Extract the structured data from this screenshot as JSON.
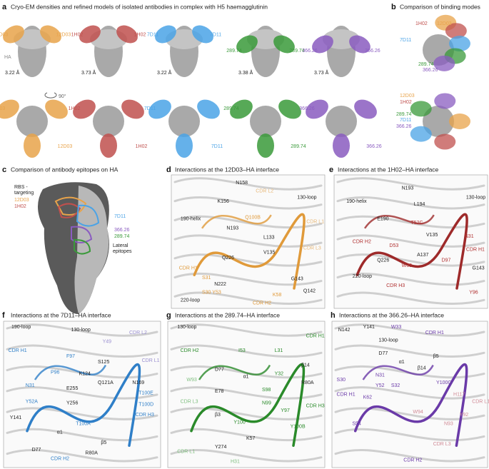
{
  "panels": {
    "a": {
      "letter": "a",
      "title": "Cryo-EM densities and refined models of isolated antibodies in complex with H5 haemagglutinin",
      "ha": "HA",
      "rotation": "90°",
      "structures": [
        {
          "name": "12D03",
          "color": "#e8a34a",
          "resolution": "3.22 Å"
        },
        {
          "name": "1H02",
          "color": "#c0504d",
          "resolution": "3.73 Å"
        },
        {
          "name": "7D11",
          "color": "#4aa3e6",
          "resolution": "3.22 Å"
        },
        {
          "name": "289.74",
          "color": "#3a9a3a",
          "resolution": "3.38 Å"
        },
        {
          "name": "366.26",
          "color": "#8a5cc0",
          "resolution": "3.73 Å"
        }
      ]
    },
    "b": {
      "letter": "b",
      "title": "Comparison of binding modes"
    },
    "c": {
      "letter": "c",
      "title": "Comparison of antibody epitopes on HA",
      "rbs": "RBS -",
      "rbs2": "targeting",
      "lateral": "Lateral",
      "lateral2": "epitopes"
    },
    "d": {
      "letter": "d",
      "title": "Interactions at the 12D03–HA interface",
      "color": "#e09a3a",
      "labels": [
        {
          "text": "N158",
          "color": "#222"
        },
        {
          "text": "K156",
          "color": "#222"
        },
        {
          "text": "130-loop",
          "color": "#222"
        },
        {
          "text": "190-helix",
          "color": "#222"
        },
        {
          "text": "N193",
          "color": "#222"
        },
        {
          "text": "L133",
          "color": "#222"
        },
        {
          "text": "V135",
          "color": "#222"
        },
        {
          "text": "Q226",
          "color": "#222"
        },
        {
          "text": "CDR L2",
          "color": "#e8b878"
        },
        {
          "text": "CDR L1",
          "color": "#e8b878"
        },
        {
          "text": "CDR L3",
          "color": "#e8b878"
        },
        {
          "text": "CDR H1",
          "color": "#e09a3a"
        },
        {
          "text": "S31",
          "color": "#e09a3a"
        },
        {
          "text": "S30 Y53",
          "color": "#e09a3a"
        },
        {
          "text": "N222",
          "color": "#222"
        },
        {
          "text": "220-loop",
          "color": "#222"
        },
        {
          "text": "G143",
          "color": "#222"
        },
        {
          "text": "Q142",
          "color": "#222"
        },
        {
          "text": "K58",
          "color": "#e09a3a"
        },
        {
          "text": "CDR H2",
          "color": "#e09a3a"
        },
        {
          "text": "Q100B",
          "color": "#e09a3a"
        }
      ]
    },
    "e": {
      "letter": "e",
      "title": "Interactions at the 1H02–HA interface",
      "color": "#9e2a2a",
      "labels": [
        {
          "text": "190-helix",
          "color": "#222"
        },
        {
          "text": "N193",
          "color": "#222"
        },
        {
          "text": "L194",
          "color": "#222"
        },
        {
          "text": "E190",
          "color": "#222"
        },
        {
          "text": "130-loop",
          "color": "#222"
        },
        {
          "text": "T52C",
          "color": "#b03030"
        },
        {
          "text": "V135",
          "color": "#222"
        },
        {
          "text": "N31",
          "color": "#b03030"
        },
        {
          "text": "CDR H1",
          "color": "#b03030"
        },
        {
          "text": "CDR H2",
          "color": "#b03030"
        },
        {
          "text": "D53",
          "color": "#b03030"
        },
        {
          "text": "Q226",
          "color": "#222"
        },
        {
          "text": "A137",
          "color": "#222"
        },
        {
          "text": "W33",
          "color": "#b03030"
        },
        {
          "text": "G143",
          "color": "#222"
        },
        {
          "text": "D97",
          "color": "#b03030"
        },
        {
          "text": "CDR H3",
          "color": "#b03030"
        },
        {
          "text": "Y96",
          "color": "#b03030"
        },
        {
          "text": "220-loop",
          "color": "#222"
        }
      ]
    },
    "f": {
      "letter": "f",
      "title": "Interactions at the 7D11–HA interface",
      "color": "#2f7fc8",
      "labels": [
        {
          "text": "190-loop",
          "color": "#222"
        },
        {
          "text": "130-loop",
          "color": "#222"
        },
        {
          "text": "CDR L2",
          "color": "#9a8fd0"
        },
        {
          "text": "Y49",
          "color": "#9a8fd0"
        },
        {
          "text": "CDR L1",
          "color": "#9a8fd0"
        },
        {
          "text": "CDR H1",
          "color": "#2f7fc8"
        },
        {
          "text": "F97",
          "color": "#2f7fc8"
        },
        {
          "text": "S125",
          "color": "#222"
        },
        {
          "text": "P96",
          "color": "#2f7fc8"
        },
        {
          "text": "K124",
          "color": "#222"
        },
        {
          "text": "N169",
          "color": "#222"
        },
        {
          "text": "N31",
          "color": "#2f7fc8"
        },
        {
          "text": "Q121A",
          "color": "#222"
        },
        {
          "text": "E255",
          "color": "#222"
        },
        {
          "text": "T100E",
          "color": "#2f7fc8"
        },
        {
          "text": "Y52A",
          "color": "#2f7fc8"
        },
        {
          "text": "Y256",
          "color": "#222"
        },
        {
          "text": "T100D",
          "color": "#2f7fc8"
        },
        {
          "text": "CDR H3",
          "color": "#2f7fc8"
        },
        {
          "text": "Y141",
          "color": "#222"
        },
        {
          "text": "T100A",
          "color": "#2f7fc8"
        },
        {
          "text": "α1",
          "color": "#222"
        },
        {
          "text": "β5",
          "color": "#222"
        },
        {
          "text": "D77",
          "color": "#222"
        },
        {
          "text": "R80A",
          "color": "#222"
        },
        {
          "text": "CDR H2",
          "color": "#2f7fc8"
        }
      ]
    },
    "g": {
      "letter": "g",
      "title": "Interactions at the 289.74–HA interface",
      "color": "#2a8a2a",
      "labels": [
        {
          "text": "130-loop",
          "color": "#222"
        },
        {
          "text": "CDR H1",
          "color": "#2a8a2a"
        },
        {
          "text": "CDR H2",
          "color": "#2a8a2a"
        },
        {
          "text": "I53",
          "color": "#2a8a2a"
        },
        {
          "text": "L31",
          "color": "#2a8a2a"
        },
        {
          "text": "β14",
          "color": "#222"
        },
        {
          "text": "D77",
          "color": "#222"
        },
        {
          "text": "α1",
          "color": "#222"
        },
        {
          "text": "Y32",
          "color": "#2a8a2a"
        },
        {
          "text": "R80A",
          "color": "#222"
        },
        {
          "text": "W93",
          "color": "#7fbf7f"
        },
        {
          "text": "E78",
          "color": "#222"
        },
        {
          "text": "S98",
          "color": "#2a8a2a"
        },
        {
          "text": "CDR L3",
          "color": "#7fbf7f"
        },
        {
          "text": "N99",
          "color": "#2a8a2a"
        },
        {
          "text": "Y97",
          "color": "#2a8a2a"
        },
        {
          "text": "CDR H3",
          "color": "#2a8a2a"
        },
        {
          "text": "β3",
          "color": "#222"
        },
        {
          "text": "Y100",
          "color": "#2a8a2a"
        },
        {
          "text": "Y100B",
          "color": "#2a8a2a"
        },
        {
          "text": "K57",
          "color": "#222"
        },
        {
          "text": "Y274",
          "color": "#222"
        },
        {
          "text": "CDR L1",
          "color": "#7fbf7f"
        },
        {
          "text": "H31",
          "color": "#7fbf7f"
        }
      ]
    },
    "h": {
      "letter": "h",
      "title": "Interactions at the 366.26–HA interface",
      "color": "#6a3aa8",
      "labels": [
        {
          "text": "N142",
          "color": "#222"
        },
        {
          "text": "Y141",
          "color": "#222"
        },
        {
          "text": "W33",
          "color": "#6a3aa8"
        },
        {
          "text": "130-loop",
          "color": "#222"
        },
        {
          "text": "CDR H1",
          "color": "#6a3aa8"
        },
        {
          "text": "β5",
          "color": "#222"
        },
        {
          "text": "D77",
          "color": "#222"
        },
        {
          "text": "α1",
          "color": "#222"
        },
        {
          "text": "β14",
          "color": "#222"
        },
        {
          "text": "S30",
          "color": "#6a3aa8"
        },
        {
          "text": "N31",
          "color": "#6a3aa8"
        },
        {
          "text": "Y52",
          "color": "#6a3aa8"
        },
        {
          "text": "S32",
          "color": "#6a3aa8"
        },
        {
          "text": "CDR H1",
          "color": "#6a3aa8"
        },
        {
          "text": "K62",
          "color": "#6a3aa8"
        },
        {
          "text": "Y100C",
          "color": "#6a3aa8"
        },
        {
          "text": "H117",
          "color": "#d08a95"
        },
        {
          "text": "CDR L1",
          "color": "#d08a95"
        },
        {
          "text": "S54",
          "color": "#6a3aa8"
        },
        {
          "text": "W94",
          "color": "#d08a95"
        },
        {
          "text": "Y92",
          "color": "#d08a95"
        },
        {
          "text": "N93",
          "color": "#d08a95"
        },
        {
          "text": "CDR L3",
          "color": "#d08a95"
        },
        {
          "text": "CDR H2",
          "color": "#6a3aa8"
        }
      ]
    }
  }
}
